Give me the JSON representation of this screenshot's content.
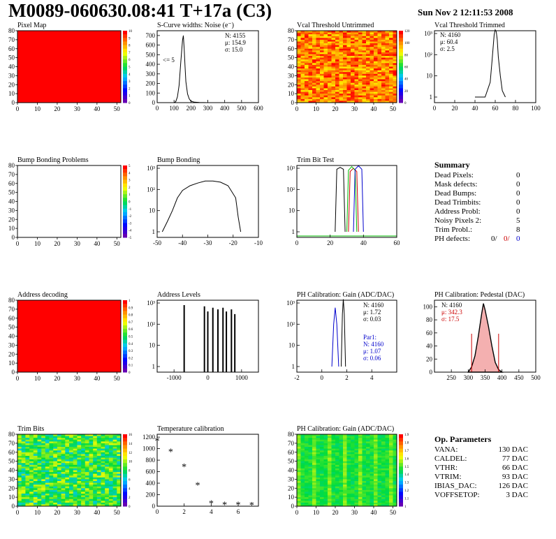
{
  "header": {
    "title": "M0089-060630.08:41 T+17a (C3)",
    "date": "Sun Nov  2 12:11:53 2008"
  },
  "colors": {
    "map_red": "#ff0000",
    "line": "#000000",
    "blue": "#0000cc",
    "red_text": "#cc0000",
    "green": "#00bb00"
  },
  "chart_data": [
    {
      "type": "heatmap",
      "title": "Pixel Map",
      "xlim": [
        0,
        52
      ],
      "ylim": [
        0,
        80
      ],
      "xticks": [
        0,
        10,
        20,
        30,
        40,
        50
      ],
      "yticks": [
        0,
        10,
        20,
        30,
        40,
        50,
        60,
        70,
        80
      ],
      "fill": "uniform",
      "z_scale": [
        0,
        1,
        2,
        3,
        4,
        5,
        6,
        7,
        8,
        9,
        10
      ]
    },
    {
      "type": "line",
      "title": "S-Curve widths: Noise (e⁻)",
      "xlim": [
        0,
        600
      ],
      "ylim": [
        0,
        750
      ],
      "xticks": [
        0,
        100,
        200,
        300,
        400,
        500,
        600
      ],
      "yticks": [
        0,
        100,
        200,
        300,
        400,
        500,
        600,
        700
      ],
      "stats": [
        "N: 4155",
        "μ: 154.9",
        "σ: 15.0"
      ],
      "annotation": "<= 5",
      "x": [
        100,
        110,
        120,
        130,
        140,
        150,
        155,
        160,
        165,
        170,
        180,
        190,
        200,
        220,
        250,
        300
      ],
      "y": [
        0,
        10,
        60,
        180,
        420,
        650,
        700,
        560,
        380,
        220,
        90,
        40,
        15,
        5,
        2,
        0
      ]
    },
    {
      "type": "heatmap",
      "title": "Vcal Threshold Untrimmed",
      "xlim": [
        0,
        52
      ],
      "ylim": [
        0,
        80
      ],
      "xticks": [
        0,
        10,
        20,
        30,
        40,
        50
      ],
      "yticks": [
        0,
        10,
        20,
        30,
        40,
        50,
        60,
        70,
        80
      ],
      "fill": "noise-warm",
      "z_scale": [
        0,
        20,
        40,
        60,
        80,
        100,
        120
      ]
    },
    {
      "type": "line",
      "title": "Vcal Threshold Trimmed",
      "xlim": [
        0,
        100
      ],
      "log_y": true,
      "xticks": [
        0,
        20,
        40,
        60,
        80,
        100
      ],
      "yticks": [
        "1",
        "10",
        "10²",
        "10³"
      ],
      "stats": [
        "N: 4160",
        "μ: 60.4",
        "σ:  2.5"
      ],
      "x": [
        40,
        45,
        50,
        55,
        57,
        59,
        60,
        61,
        62,
        63,
        65,
        67,
        70
      ],
      "y": [
        1,
        1,
        1,
        5,
        60,
        900,
        1500,
        1200,
        500,
        80,
        10,
        2,
        1
      ]
    },
    {
      "type": "heatmap",
      "title": "Bump Bonding Problems",
      "xlim": [
        0,
        52
      ],
      "ylim": [
        0,
        80
      ],
      "xticks": [
        0,
        10,
        20,
        30,
        40,
        50
      ],
      "yticks": [
        0,
        10,
        20,
        30,
        40,
        50,
        60,
        70,
        80
      ],
      "fill": "empty",
      "z_scale": [
        -5,
        -4,
        -3,
        -2,
        -1,
        0,
        1,
        2,
        3,
        4,
        5
      ]
    },
    {
      "type": "line",
      "title": "Bump Bonding",
      "xlim": [
        -50,
        -10
      ],
      "log_y": true,
      "xticks": [
        -50,
        -40,
        -30,
        -20,
        -10
      ],
      "yticks": [
        "1",
        "10",
        "10²",
        "10³"
      ],
      "x": [
        -48,
        -46,
        -44,
        -42,
        -40,
        -37,
        -34,
        -31,
        -28,
        -25,
        -22,
        -19,
        -18,
        -17
      ],
      "y": [
        1,
        3,
        10,
        40,
        90,
        150,
        200,
        250,
        250,
        220,
        150,
        40,
        5,
        1
      ]
    },
    {
      "type": "line",
      "title": "Trim Bit Test",
      "xlim": [
        0,
        60
      ],
      "log_y": true,
      "xticks": [
        0,
        20,
        40,
        60
      ],
      "yticks": [
        "1",
        "10",
        "10²",
        "10³"
      ],
      "series": [
        {
          "color": "#000000",
          "x": [
            23,
            24,
            26,
            28,
            29
          ],
          "y": [
            1,
            900,
            1100,
            900,
            1
          ]
        },
        {
          "color": "#cc0000",
          "x": [
            31,
            32,
            34,
            36,
            37
          ],
          "y": [
            1,
            700,
            1000,
            700,
            1
          ]
        },
        {
          "color": "#00bb00",
          "x": [
            30,
            31,
            33,
            35,
            36
          ],
          "y": [
            1,
            800,
            1200,
            800,
            1
          ]
        },
        {
          "color": "#0000cc",
          "x": [
            34,
            35,
            37,
            39,
            40
          ],
          "y": [
            1,
            900,
            1300,
            900,
            1
          ]
        }
      ]
    },
    {
      "type": "table",
      "title": "Summary",
      "rows": [
        {
          "label": "Dead Pixels:",
          "value": "0"
        },
        {
          "label": "Mask defects:",
          "value": "0"
        },
        {
          "label": "Dead Bumps:",
          "value": "0"
        },
        {
          "label": "Dead Trimbits:",
          "value": "0"
        },
        {
          "label": "Address Probl:",
          "value": "0"
        },
        {
          "label": "Noisy Pixels 2:",
          "value": "5"
        },
        {
          "label": "Trim Probl.:",
          "value": "8"
        }
      ],
      "ph_defects": {
        "label": "PH defects:",
        "v1": "0/",
        "v2": "0/",
        "v3": "0"
      }
    },
    {
      "type": "heatmap",
      "title": "Address decoding",
      "xlim": [
        0,
        52
      ],
      "ylim": [
        0,
        80
      ],
      "xticks": [
        0,
        10,
        20,
        30,
        40,
        50
      ],
      "yticks": [
        0,
        10,
        20,
        30,
        40,
        50,
        60,
        70,
        80
      ],
      "fill": "uniform",
      "z_scale": [
        0,
        0.1,
        0.2,
        0.3,
        0.4,
        0.5,
        0.6,
        0.7,
        0.8,
        0.9,
        1
      ]
    },
    {
      "type": "bar",
      "title": "Address Levels",
      "xlim": [
        -1500,
        1500
      ],
      "log_y": true,
      "xticks": [
        -1000,
        0,
        1000
      ],
      "yticks": [
        "1",
        "10",
        "10²",
        "10³"
      ],
      "x": [
        -700,
        -100,
        0,
        150,
        300,
        450,
        550,
        700,
        800
      ],
      "y": [
        800,
        700,
        400,
        600,
        500,
        600,
        400,
        500,
        300
      ]
    },
    {
      "type": "line",
      "title": "PH Calibration: Gain (ADC/DAC)",
      "xlim": [
        -2,
        6
      ],
      "log_y": true,
      "xticks": [
        -2,
        0,
        2,
        4
      ],
      "yticks": [
        "1",
        "10",
        "10²",
        "10³"
      ],
      "stats": [
        "N: 4160",
        "μ: 1.72",
        "σ: 0.03"
      ],
      "stats2": [
        "Par1:",
        "N: 4160",
        "μ: 1.07",
        "σ: 0.06"
      ],
      "series": [
        {
          "color": "#000000",
          "x": [
            1.55,
            1.65,
            1.72,
            1.8,
            1.9
          ],
          "y": [
            1,
            300,
            1500,
            300,
            1
          ]
        },
        {
          "color": "#0000cc",
          "x": [
            0.8,
            0.95,
            1.07,
            1.2,
            1.35
          ],
          "y": [
            1,
            100,
            600,
            100,
            1
          ]
        }
      ]
    },
    {
      "type": "line",
      "title": "PH Calibration: Pedestal (DAC)",
      "xlim": [
        200,
        500
      ],
      "ylim": [
        0,
        110
      ],
      "xticks": [
        250,
        300,
        350,
        400,
        450,
        500
      ],
      "yticks": [
        0,
        20,
        40,
        60,
        80,
        100
      ],
      "stats": [
        "N: 4160",
        "μ: 342.3",
        "σ: 17.5"
      ],
      "x": [
        300,
        310,
        320,
        330,
        340,
        345,
        350,
        360,
        370,
        380,
        390,
        400
      ],
      "y": [
        0,
        8,
        25,
        55,
        90,
        105,
        95,
        70,
        40,
        15,
        4,
        0
      ]
    },
    {
      "type": "heatmap",
      "title": "Trim Bits",
      "xlim": [
        0,
        52
      ],
      "ylim": [
        0,
        80
      ],
      "xticks": [
        0,
        10,
        20,
        30,
        40,
        50
      ],
      "yticks": [
        0,
        10,
        20,
        30,
        40,
        50,
        60,
        70,
        80
      ],
      "fill": "noise-cool",
      "z_scale": [
        0,
        2,
        4,
        6,
        8,
        10,
        12,
        14,
        16
      ]
    },
    {
      "type": "scatter",
      "title": "Temperature calibration",
      "xlim": [
        0,
        7.5
      ],
      "ylim": [
        0,
        1250
      ],
      "xticks": [
        0,
        2,
        4,
        6
      ],
      "yticks": [
        0,
        200,
        400,
        600,
        800,
        1000,
        1200
      ],
      "x": [
        0,
        1,
        2,
        3,
        4,
        5,
        6,
        7
      ],
      "y": [
        1130,
        940,
        680,
        360,
        40,
        20,
        20,
        10
      ]
    },
    {
      "type": "heatmap",
      "title": "PH Calibration: Gain (ADC/DAC)",
      "xlim": [
        0,
        52
      ],
      "ylim": [
        0,
        80
      ],
      "xticks": [
        0,
        10,
        20,
        30,
        40,
        50
      ],
      "yticks": [
        0,
        10,
        20,
        30,
        40,
        50,
        60,
        70,
        80
      ],
      "fill": "noise-green",
      "z_scale": [
        1,
        1.1,
        1.2,
        1.3,
        1.4,
        1.5,
        1.6,
        1.7,
        1.8,
        1.9
      ]
    },
    {
      "type": "table",
      "title": "Op. Parameters",
      "rows": [
        {
          "label": "VANA:",
          "value": "130 DAC"
        },
        {
          "label": "CALDEL:",
          "value": "77 DAC"
        },
        {
          "label": "VTHR:",
          "value": "66 DAC"
        },
        {
          "label": "VTRIM:",
          "value": "93 DAC"
        },
        {
          "label": "IBIAS_DAC:",
          "value": "126 DAC"
        },
        {
          "label": "VOFFSETOP:",
          "value": "3 DAC"
        }
      ]
    }
  ]
}
